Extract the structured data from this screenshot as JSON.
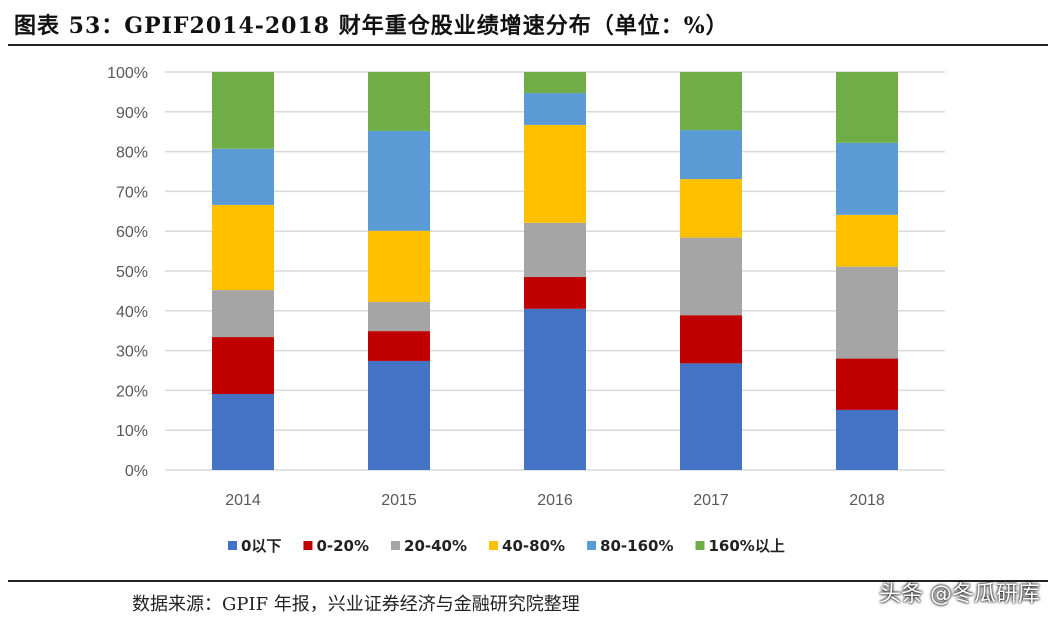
{
  "title": "图表 53：GPIF2014-2018 财年重仓股业绩增速分布（单位：%）",
  "source": "数据来源：GPIF 年报，兴业证券经济与金融研究院整理",
  "watermark": "头条 @冬瓜研库",
  "chart_data": {
    "type": "bar",
    "stacked": true,
    "categories": [
      "2014",
      "2015",
      "2016",
      "2017",
      "2018"
    ],
    "ylim": [
      0,
      100
    ],
    "yticks": [
      "0%",
      "10%",
      "20%",
      "30%",
      "40%",
      "50%",
      "60%",
      "70%",
      "80%",
      "90%",
      "100%"
    ],
    "grid": true,
    "legend_placement": "bottom",
    "series": [
      {
        "name": "0以下",
        "color": "#4472C4",
        "values": [
          19.1,
          27.4,
          40.5,
          26.8,
          15.1
        ]
      },
      {
        "name": "0-20%",
        "color": "#C00000",
        "values": [
          14.3,
          7.5,
          8.0,
          12.1,
          12.9
        ]
      },
      {
        "name": "20-40%",
        "color": "#A5A5A5",
        "values": [
          11.8,
          7.3,
          13.6,
          19.5,
          23.1
        ]
      },
      {
        "name": "40-80%",
        "color": "#FFC000",
        "values": [
          21.4,
          17.9,
          24.6,
          14.7,
          13.0
        ]
      },
      {
        "name": "80-160%",
        "color": "#5B9BD5",
        "values": [
          14.1,
          25.1,
          8.0,
          12.3,
          18.1
        ]
      },
      {
        "name": "160%以上",
        "color": "#70AD47",
        "values": [
          19.3,
          14.8,
          5.3,
          14.6,
          17.8
        ]
      }
    ]
  }
}
